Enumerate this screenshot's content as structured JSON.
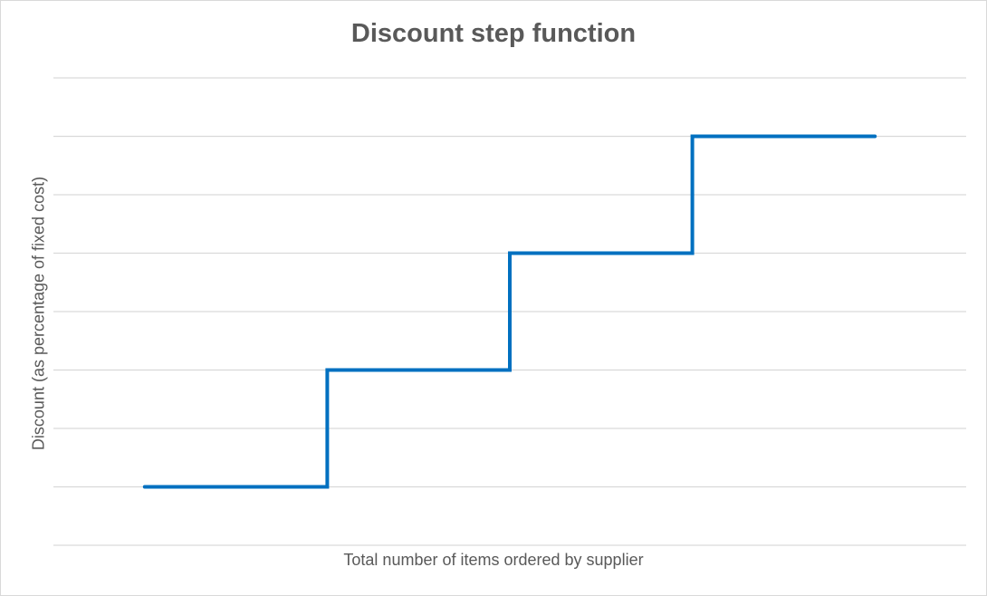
{
  "chart_data": {
    "type": "line",
    "style": "step",
    "title": "Discount step function",
    "xlabel": "Total number of items ordered by supplier",
    "ylabel": "Discount (as percentage of fixed cost)",
    "x": [
      0,
      1,
      1,
      2,
      2,
      3,
      3,
      4
    ],
    "y": [
      1,
      1,
      3,
      3,
      5,
      5,
      7,
      7
    ],
    "xlim": [
      -0.5,
      4.5
    ],
    "ylim": [
      0,
      8
    ],
    "grid": true,
    "gridlines_y": [
      0,
      1,
      2,
      3,
      4,
      5,
      6,
      7,
      8
    ],
    "tick_labels_shown": false,
    "series": [
      {
        "name": "",
        "color": "#0070C0"
      }
    ]
  },
  "colors": {
    "line": "#0070C0",
    "grid": "#d9d9d9",
    "text": "#595959",
    "border": "#d9d9d9"
  }
}
